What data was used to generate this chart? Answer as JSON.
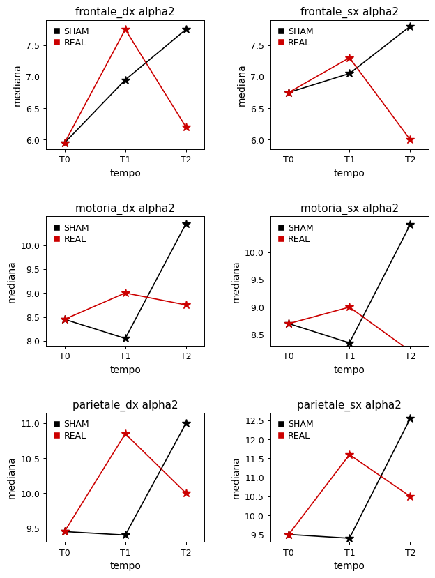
{
  "plots": [
    {
      "title": "frontale_dx alpha2",
      "sham": [
        5.95,
        6.95,
        7.75
      ],
      "real": [
        5.95,
        7.75,
        6.2
      ],
      "ylim": [
        5.85,
        7.9
      ],
      "yticks": [
        6.0,
        6.5,
        7.0,
        7.5
      ]
    },
    {
      "title": "frontale_sx alpha2",
      "sham": [
        6.75,
        7.05,
        7.8
      ],
      "real": [
        6.75,
        7.3,
        6.0
      ],
      "ylim": [
        5.85,
        7.9
      ],
      "yticks": [
        6.0,
        6.5,
        7.0,
        7.5
      ]
    },
    {
      "title": "motoria_dx alpha2",
      "sham": [
        8.45,
        8.05,
        10.45
      ],
      "real": [
        8.45,
        9.0,
        8.75
      ],
      "ylim": [
        7.9,
        10.6
      ],
      "yticks": [
        8.0,
        8.5,
        9.0,
        9.5,
        10.0
      ]
    },
    {
      "title": "motoria_sx alpha2",
      "sham": [
        8.7,
        8.35,
        10.5
      ],
      "real": [
        8.7,
        9.0,
        8.2
      ],
      "ylim": [
        8.3,
        10.65
      ],
      "yticks": [
        8.5,
        9.0,
        9.5,
        10.0
      ]
    },
    {
      "title": "parietale_dx alpha2",
      "sham": [
        9.45,
        9.4,
        11.0
      ],
      "real": [
        9.45,
        10.85,
        10.0
      ],
      "ylim": [
        9.3,
        11.15
      ],
      "yticks": [
        9.5,
        10.0,
        10.5,
        11.0
      ]
    },
    {
      "title": "parietale_sx alpha2",
      "sham": [
        9.5,
        9.4,
        12.55
      ],
      "real": [
        9.5,
        11.6,
        10.5
      ],
      "ylim": [
        9.3,
        12.7
      ],
      "yticks": [
        9.5,
        10.0,
        10.5,
        11.0,
        11.5,
        12.0,
        12.5
      ]
    }
  ],
  "xtick_labels": [
    "T0",
    "T1",
    "T2"
  ],
  "xlabel": "tempo",
  "ylabel": "mediana",
  "sham_color": "#000000",
  "real_color": "#cc0000",
  "legend_labels": [
    "SHAM",
    "REAL"
  ],
  "background_color": "#ffffff",
  "title_fontsize": 11,
  "label_fontsize": 10,
  "tick_fontsize": 9,
  "legend_fontsize": 9
}
